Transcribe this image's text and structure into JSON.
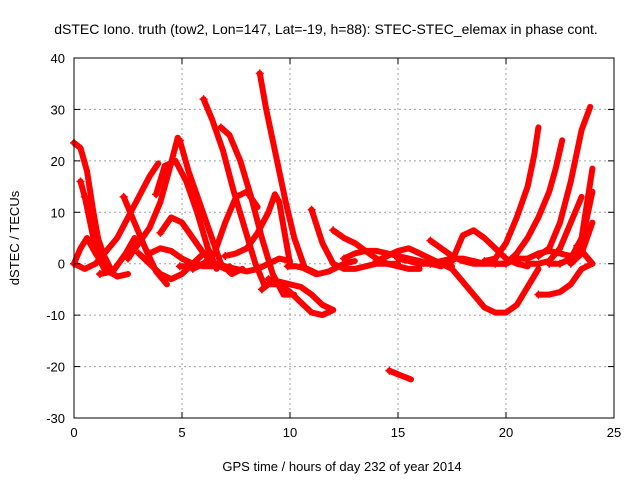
{
  "chart_data": {
    "type": "line",
    "title": "dSTEC Iono. truth (tow2, Lon=147, Lat=-19, h=88): STEC-STEC_elemax in phase cont.",
    "xlabel": "GPS time / hours of day 232 of year 2014",
    "ylabel": "dSTEC  / TECUs",
    "xlim": [
      0,
      25
    ],
    "ylim": [
      -30,
      40
    ],
    "xticks": [
      0,
      5,
      10,
      15,
      20,
      25
    ],
    "yticks": [
      -30,
      -20,
      -10,
      0,
      10,
      20,
      30,
      40
    ],
    "grid": true,
    "legend": "none",
    "color": "#ff0000",
    "series": [
      {
        "x": [
          0.0,
          0.3,
          0.6,
          0.9,
          1.2,
          1.5
        ],
        "y": [
          23.5,
          22.5,
          18.0,
          10.0,
          3.0,
          -1.5
        ]
      },
      {
        "x": [
          0.3,
          0.5,
          0.7,
          0.9,
          1.1,
          1.4,
          1.8
        ],
        "y": [
          16.0,
          13.0,
          9.0,
          5.0,
          1.5,
          -1.0,
          -2.0
        ]
      },
      {
        "x": [
          0.5,
          0.7,
          0.9,
          1.1,
          1.4,
          1.7
        ],
        "y": [
          13.0,
          12.0,
          9.0,
          5.0,
          1.5,
          -1.0
        ]
      },
      {
        "x": [
          0.0,
          0.3,
          0.6,
          1.0,
          1.5,
          2.0,
          2.5
        ],
        "y": [
          0.0,
          3.0,
          5.0,
          2.0,
          -1.0,
          -2.5,
          -2.0
        ]
      },
      {
        "x": [
          0.0,
          0.5,
          1.0,
          1.5,
          2.0,
          2.5,
          3.0,
          3.5,
          3.9
        ],
        "y": [
          0.0,
          -1.0,
          0.0,
          2.5,
          5.0,
          9.0,
          13.0,
          17.0,
          19.5
        ]
      },
      {
        "x": [
          1.2,
          1.8,
          2.4,
          2.8,
          3.0
        ],
        "y": [
          -2.0,
          -1.5,
          2.0,
          5.0,
          4.0
        ]
      },
      {
        "x": [
          2.3,
          2.8,
          3.3,
          3.8,
          4.3
        ],
        "y": [
          13.0,
          8.0,
          3.0,
          -1.5,
          -4.0
        ]
      },
      {
        "x": [
          2.5,
          3.0,
          3.5,
          4.0,
          4.4,
          4.8
        ],
        "y": [
          1.0,
          4.0,
          7.0,
          12.0,
          18.0,
          24.5
        ]
      },
      {
        "x": [
          3.0,
          3.5,
          4.0,
          4.5,
          5.0,
          5.5,
          6.0,
          6.5
        ],
        "y": [
          2.0,
          0.0,
          -2.0,
          -3.0,
          -2.0,
          0.0,
          2.0,
          2.0
        ]
      },
      {
        "x": [
          3.8,
          4.2,
          4.7,
          5.2,
          5.7,
          6.2,
          6.6
        ],
        "y": [
          13.5,
          19.0,
          20.0,
          16.0,
          10.0,
          3.0,
          -1.0
        ]
      },
      {
        "x": [
          3.5,
          4.0,
          4.5,
          5.0,
          5.5,
          6.0,
          6.5
        ],
        "y": [
          2.0,
          3.0,
          2.5,
          1.0,
          0.0,
          -0.5,
          -0.5
        ]
      },
      {
        "x": [
          4.0,
          4.5,
          5.0,
          5.5,
          6.0,
          6.5,
          7.0,
          7.2
        ],
        "y": [
          6.0,
          9.0,
          8.0,
          5.0,
          2.0,
          0.0,
          -1.0,
          -0.5
        ]
      },
      {
        "x": [
          4.9,
          5.3,
          5.8,
          6.3,
          6.8,
          7.3,
          7.8
        ],
        "y": [
          24.0,
          18.0,
          12.0,
          6.0,
          0.0,
          -2.0,
          -1.0
        ]
      },
      {
        "x": [
          6.0,
          6.4,
          6.9,
          7.4,
          7.9,
          8.4,
          8.8
        ],
        "y": [
          32.0,
          28.0,
          22.0,
          14.0,
          7.0,
          0.0,
          -4.0
        ]
      },
      {
        "x": [
          4.9,
          5.5,
          6.0,
          6.5,
          7.0,
          7.5,
          8.0,
          8.5
        ],
        "y": [
          -0.5,
          -0.5,
          0.0,
          2.0,
          8.0,
          13.0,
          14.0,
          11.0
        ]
      },
      {
        "x": [
          6.8,
          7.2,
          7.7,
          8.2,
          8.7,
          9.2,
          9.7,
          10.2
        ],
        "y": [
          26.5,
          25.0,
          20.0,
          13.0,
          5.0,
          -2.0,
          -6.0,
          -6.0
        ]
      },
      {
        "x": [
          7.0,
          7.5,
          8.0,
          8.5,
          9.0,
          9.3,
          9.5,
          10.0
        ],
        "y": [
          1.5,
          2.0,
          3.0,
          6.0,
          10.0,
          13.5,
          12.0,
          0.0
        ]
      },
      {
        "x": [
          5.5,
          6.0,
          6.5,
          7.0,
          7.5,
          8.0,
          8.5,
          9.0,
          9.5,
          10.0
        ],
        "y": [
          -1.0,
          0.0,
          0.0,
          -0.5,
          -1.0,
          -1.5,
          -1.0,
          0.0,
          1.0,
          0.5
        ]
      },
      {
        "x": [
          8.6,
          8.9,
          9.2,
          9.5,
          9.8,
          10.2,
          10.7,
          11.2
        ],
        "y": [
          37.0,
          30.0,
          24.0,
          18.0,
          12.0,
          5.0,
          -1.0,
          -2.0
        ]
      },
      {
        "x": [
          8.7,
          9.0,
          9.5,
          10.0,
          10.5,
          11.0,
          11.5,
          12.0
        ],
        "y": [
          -5.0,
          -4.0,
          -4.0,
          -5.5,
          -7.5,
          -9.5,
          -10.0,
          -9.0
        ]
      },
      {
        "x": [
          9.0,
          9.5,
          10.0,
          10.5,
          11.0,
          11.5,
          12.0
        ],
        "y": [
          -3.0,
          -3.5,
          -4.0,
          -4.5,
          -6.0,
          -8.0,
          -9.0
        ]
      },
      {
        "x": [
          9.9,
          10.3,
          10.8,
          11.3,
          11.8,
          12.5,
          13.0
        ],
        "y": [
          -0.5,
          -0.5,
          -1.0,
          -2.0,
          -1.5,
          0.0,
          0.5
        ]
      },
      {
        "x": [
          11.0,
          11.5,
          12.0,
          12.5,
          13.0,
          13.5,
          14.0,
          14.5,
          15.0
        ],
        "y": [
          10.5,
          4.0,
          0.0,
          -1.0,
          -1.0,
          -0.5,
          0.0,
          0.0,
          0.0
        ]
      },
      {
        "x": [
          12.0,
          12.5,
          13.0,
          13.5,
          14.0,
          14.5,
          15.0,
          15.5,
          16.0
        ],
        "y": [
          6.5,
          5.0,
          4.0,
          2.5,
          1.0,
          0.0,
          -0.5,
          -1.0,
          -1.0
        ]
      },
      {
        "x": [
          12.5,
          13.0,
          13.5,
          14.0,
          14.5,
          15.0,
          15.5,
          16.0,
          16.5,
          17.0
        ],
        "y": [
          1.0,
          2.0,
          2.5,
          2.5,
          2.0,
          1.5,
          1.0,
          0.5,
          0.0,
          -0.5
        ]
      },
      {
        "x": [
          14.0,
          14.5,
          15.0,
          15.5,
          16.0,
          16.5,
          17.0,
          17.5
        ],
        "y": [
          0.5,
          1.5,
          2.5,
          3.0,
          2.0,
          1.0,
          0.0,
          -0.5
        ]
      },
      {
        "x": [
          14.6,
          15.0,
          15.3,
          15.6
        ],
        "y": [
          -20.8,
          -21.5,
          -22.0,
          -22.5
        ]
      },
      {
        "x": [
          15.0,
          15.5,
          16.0,
          16.5,
          17.0,
          17.5,
          18.0,
          18.5,
          19.0
        ],
        "y": [
          1.0,
          0.5,
          0.0,
          0.0,
          0.5,
          1.0,
          1.0,
          0.5,
          0.0
        ]
      },
      {
        "x": [
          16.5,
          17.0,
          17.5,
          18.0,
          18.5,
          19.0,
          19.5,
          20.0
        ],
        "y": [
          4.5,
          3.0,
          1.5,
          0.5,
          0.0,
          0.0,
          0.0,
          0.0
        ]
      },
      {
        "x": [
          17.5,
          18.0,
          18.5,
          19.0,
          19.5,
          20.0,
          20.5,
          21.0
        ],
        "y": [
          0.5,
          5.5,
          6.5,
          5.0,
          3.0,
          1.0,
          0.0,
          -0.5
        ]
      },
      {
        "x": [
          16.5,
          17.0,
          17.5,
          18.0,
          18.5,
          19.0,
          19.5,
          20.0,
          20.5,
          21.0,
          21.5
        ],
        "y": [
          0.0,
          0.0,
          -1.0,
          -3.5,
          -6.0,
          -8.5,
          -9.5,
          -9.5,
          -8.0,
          -4.5,
          -1.0
        ]
      },
      {
        "x": [
          19.0,
          19.5,
          20.0,
          20.5,
          21.0,
          21.3,
          21.5
        ],
        "y": [
          0.5,
          1.0,
          4.0,
          9.0,
          15.0,
          21.0,
          26.5
        ]
      },
      {
        "x": [
          19.5,
          20.0,
          20.5,
          21.0,
          21.5,
          22.0,
          22.5,
          23.0
        ],
        "y": [
          0.0,
          0.0,
          1.0,
          1.0,
          2.0,
          2.5,
          2.0,
          1.5
        ]
      },
      {
        "x": [
          20.0,
          20.5,
          21.0,
          21.5,
          22.0,
          22.3,
          22.6
        ],
        "y": [
          0.0,
          2.0,
          5.0,
          9.0,
          14.0,
          18.5,
          24.0
        ]
      },
      {
        "x": [
          21.5,
          22.0,
          22.5,
          23.0,
          23.5,
          24.0
        ],
        "y": [
          -6.0,
          -6.0,
          -5.5,
          -4.0,
          -1.0,
          0.0
        ]
      },
      {
        "x": [
          21.0,
          21.5,
          22.0,
          22.5,
          23.0,
          23.5
        ],
        "y": [
          0.0,
          0.0,
          0.5,
          3.0,
          8.0,
          13.0
        ]
      },
      {
        "x": [
          21.5,
          22.0,
          22.5,
          23.0,
          23.5,
          23.9
        ],
        "y": [
          1.5,
          3.0,
          8.0,
          16.0,
          26.0,
          30.5
        ]
      },
      {
        "x": [
          22.0,
          22.5,
          23.0,
          23.5,
          24.0
        ],
        "y": [
          0.0,
          0.0,
          1.0,
          5.0,
          18.5
        ]
      },
      {
        "x": [
          22.5,
          23.0,
          23.5,
          24.0
        ],
        "y": [
          0.0,
          1.0,
          4.0,
          14.0
        ]
      },
      {
        "x": [
          23.0,
          23.5,
          24.0
        ],
        "y": [
          0.0,
          2.0,
          8.0
        ]
      },
      {
        "x": [
          23.3,
          23.6,
          24.0
        ],
        "y": [
          3.5,
          2.0,
          0.0
        ]
      }
    ]
  }
}
